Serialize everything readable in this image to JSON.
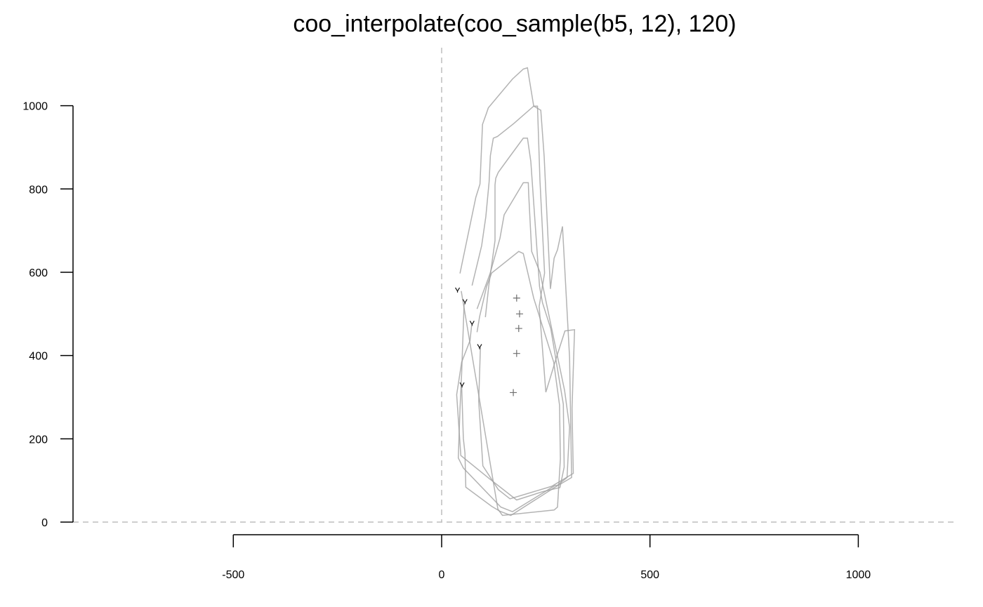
{
  "chart_data": {
    "type": "line",
    "title": "coo_interpolate(coo_sample(b5, 12), 120)",
    "xlabel": "",
    "ylabel": "",
    "xlim": [
      -890,
      1240
    ],
    "ylim": [
      0,
      1135
    ],
    "x_ticks": [
      -500,
      0,
      500,
      1000
    ],
    "x_tick_labels": [
      "-500",
      "0",
      "500",
      "1000"
    ],
    "y_ticks": [
      0,
      200,
      400,
      600,
      800,
      1000
    ],
    "y_tick_labels": [
      "0",
      "200",
      "400",
      "600",
      "800",
      "1000"
    ],
    "reference_lines": {
      "x": 0,
      "y": 0,
      "style": "dashed",
      "color": "#bdbdbd"
    },
    "grid": false,
    "series": [
      {
        "points": [
          [
            47,
            555
          ],
          [
            135,
            31
          ],
          [
            146,
            16
          ],
          [
            270,
            29
          ],
          [
            278,
            36
          ],
          [
            285,
            152
          ],
          [
            283,
            281
          ],
          [
            269,
            384
          ],
          [
            221,
            538
          ],
          [
            196,
            645
          ],
          [
            185,
            650
          ],
          [
            120,
            598
          ],
          [
            108,
            566
          ],
          [
            91,
            493
          ],
          [
            85,
            456
          ]
        ],
        "start": [
          38,
          558
        ],
        "centroid": [
          172,
          311
        ]
      },
      {
        "points": [
          [
            54,
            525
          ],
          [
            48,
            358
          ],
          [
            44,
            271
          ],
          [
            40,
            154
          ],
          [
            52,
            130
          ],
          [
            142,
            36
          ],
          [
            170,
            25
          ],
          [
            272,
            88
          ],
          [
            277,
            88
          ],
          [
            301,
            107
          ],
          [
            307,
            228
          ],
          [
            295,
            316
          ],
          [
            236,
            600
          ],
          [
            216,
            650
          ],
          [
            209,
            787
          ],
          [
            208,
            815
          ],
          [
            196,
            815
          ],
          [
            150,
            738
          ],
          [
            140,
            682
          ],
          [
            116,
            596
          ],
          [
            85,
            512
          ]
        ],
        "start": [
          56,
          530
        ],
        "centroid": [
          180,
          405
        ]
      },
      {
        "points": [
          [
            72,
            472
          ],
          [
            68,
            436
          ],
          [
            48,
            384
          ],
          [
            36,
            306
          ],
          [
            46,
            160
          ],
          [
            115,
            104
          ],
          [
            180,
            53
          ],
          [
            242,
            73
          ],
          [
            284,
            83
          ],
          [
            294,
            132
          ],
          [
            292,
            283
          ],
          [
            262,
            464
          ],
          [
            242,
            527
          ],
          [
            235,
            566
          ],
          [
            214,
            866
          ],
          [
            206,
            922
          ],
          [
            196,
            922
          ],
          [
            160,
            873
          ],
          [
            136,
            840
          ],
          [
            130,
            826
          ],
          [
            128,
            810
          ],
          [
            128,
            676
          ],
          [
            113,
            567
          ],
          [
            105,
            492
          ]
        ],
        "start": [
          73,
          478
        ],
        "centroid": [
          185,
          465
        ]
      },
      {
        "points": [
          [
            93,
            420
          ],
          [
            89,
            290
          ],
          [
            99,
            135
          ],
          [
            136,
            78
          ],
          [
            164,
            56
          ],
          [
            264,
            86
          ],
          [
            316,
            117
          ],
          [
            313,
            273
          ],
          [
            319,
            462
          ],
          [
            296,
            459
          ],
          [
            276,
            397
          ],
          [
            250,
            312
          ],
          [
            234,
            518
          ],
          [
            247,
            598
          ],
          [
            236,
            821
          ],
          [
            230,
            999
          ],
          [
            221,
            999
          ],
          [
            173,
            957
          ],
          [
            134,
            926
          ],
          [
            124,
            922
          ],
          [
            117,
            880
          ],
          [
            114,
            817
          ],
          [
            106,
            733
          ],
          [
            96,
            664
          ],
          [
            73,
            568
          ]
        ],
        "start": [
          91,
          422
        ],
        "centroid": [
          187,
          500
        ]
      },
      {
        "points": [
          [
            48,
            327
          ],
          [
            52,
            201
          ],
          [
            56,
            166
          ],
          [
            58,
            84
          ],
          [
            120,
            38
          ],
          [
            140,
            26
          ],
          [
            166,
            16
          ],
          [
            271,
            83
          ],
          [
            312,
            107
          ],
          [
            307,
            395
          ],
          [
            290,
            710
          ],
          [
            278,
            654
          ],
          [
            270,
            634
          ],
          [
            261,
            560
          ],
          [
            246,
            878
          ],
          [
            238,
            989
          ],
          [
            221,
            999
          ],
          [
            206,
            1091
          ],
          [
            196,
            1088
          ],
          [
            170,
            1064
          ],
          [
            112,
            995
          ],
          [
            108,
            983
          ],
          [
            98,
            955
          ],
          [
            92,
            812
          ],
          [
            82,
            780
          ],
          [
            44,
            597
          ]
        ],
        "start": [
          49,
          330
        ],
        "centroid": [
          180,
          538
        ]
      }
    ]
  }
}
